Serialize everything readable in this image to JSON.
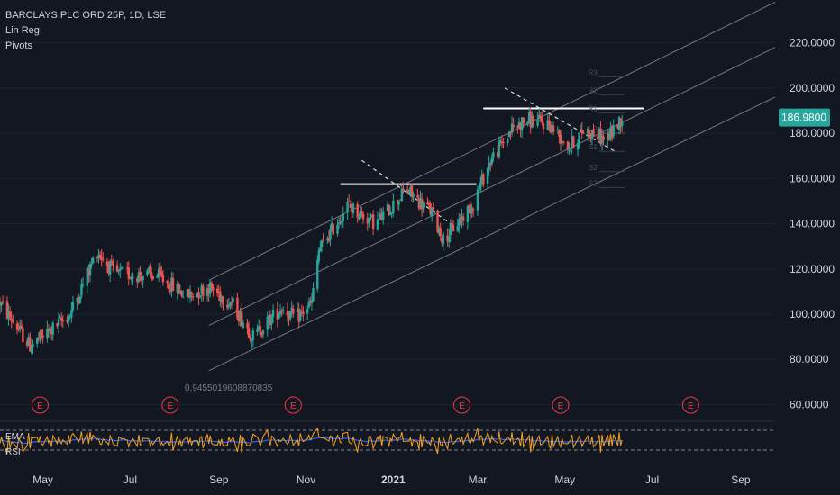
{
  "legend": {
    "symbol_line": "BARCLAYS PLC ORD 25P, 1D, LSE",
    "lin_reg": "Lin Reg",
    "pivots": "Pivots"
  },
  "oscillator": {
    "ema_label": "EMA",
    "rsi_label": "RSI"
  },
  "colors": {
    "background": "#131722",
    "up": "#26a69a",
    "down": "#ef5350",
    "price_tag": "#26a69a",
    "channel": "#9598a1",
    "earnings": "#f23645",
    "rsi": "#f7a21b",
    "ema": "#2962ff"
  },
  "chart_data": {
    "type": "candlestick",
    "title": "BARCLAYS PLC ORD 25P, 1D, LSE",
    "y_axis": {
      "ticks": [
        "220.0000",
        "200.0000",
        "180.0000",
        "160.0000",
        "140.0000",
        "120.0000",
        "100.0000",
        "80.0000",
        "60.0000"
      ],
      "tick_values": [
        220,
        200,
        180,
        160,
        140,
        120,
        100,
        80,
        60
      ],
      "range": [
        55,
        235
      ]
    },
    "x_axis": {
      "ticks": [
        "May",
        "Jul",
        "Sep",
        "Nov",
        "2021",
        "Mar",
        "May",
        "Jul",
        "Sep"
      ],
      "range": [
        "2020-04-01",
        "2021-09-25"
      ]
    },
    "last_price": "186.9800",
    "lin_reg_r": "0.9455019608870835",
    "earnings_marker": "E",
    "earnings_dates": [
      "2020-04-29",
      "2020-07-29",
      "2020-10-23",
      "2021-02-18",
      "2021-04-28",
      "2021-07-28"
    ],
    "price_path": [
      [
        "2020-04-01",
        105
      ],
      [
        "2020-04-22",
        86
      ],
      [
        "2020-05-05",
        92
      ],
      [
        "2020-05-20",
        100
      ],
      [
        "2020-06-08",
        128
      ],
      [
        "2020-06-20",
        118
      ],
      [
        "2020-07-20",
        117
      ],
      [
        "2020-08-10",
        108
      ],
      [
        "2020-08-25",
        112
      ],
      [
        "2020-09-10",
        105
      ],
      [
        "2020-09-25",
        90
      ],
      [
        "2020-10-15",
        103
      ],
      [
        "2020-10-25",
        98
      ],
      [
        "2020-11-05",
        105
      ],
      [
        "2020-11-10",
        128
      ],
      [
        "2020-11-30",
        148
      ],
      [
        "2020-12-20",
        140
      ],
      [
        "2021-01-10",
        155
      ],
      [
        "2021-01-28",
        145
      ],
      [
        "2021-02-05",
        133
      ],
      [
        "2021-02-25",
        148
      ],
      [
        "2021-03-10",
        168
      ],
      [
        "2021-03-25",
        182
      ],
      [
        "2021-04-05",
        186
      ],
      [
        "2021-04-20",
        184
      ],
      [
        "2021-05-04",
        174
      ],
      [
        "2021-05-15",
        182
      ],
      [
        "2021-05-30",
        177
      ],
      [
        "2021-06-10",
        187
      ]
    ],
    "channel_lines": [
      {
        "start": [
          "2020-08-25",
          115
        ],
        "end": [
          "2021-09-25",
          238
        ]
      },
      {
        "start": [
          "2020-08-25",
          95
        ],
        "end": [
          "2021-09-25",
          218
        ]
      },
      {
        "start": [
          "2020-08-25",
          75
        ],
        "end": [
          "2021-09-25",
          196
        ]
      }
    ],
    "resistance_lines": [
      {
        "start": [
          "2020-11-25",
          157.5
        ],
        "end": [
          "2021-02-28",
          157.5
        ]
      },
      {
        "start": [
          "2021-03-05",
          191
        ],
        "end": [
          "2021-06-25",
          191
        ]
      }
    ],
    "trend_lines": [
      {
        "start": [
          "2020-12-10",
          168
        ],
        "end": [
          "2021-02-10",
          140
        ]
      },
      {
        "start": [
          "2021-03-20",
          200
        ],
        "end": [
          "2021-06-05",
          172
        ]
      }
    ],
    "pivot_labels": [
      "R3",
      "R2",
      "R1",
      "P",
      "S1",
      "S2",
      "S3"
    ],
    "pivot_levels": [
      205,
      197,
      189,
      180,
      172,
      163,
      156
    ],
    "pivot_range": [
      "2021-05-25",
      "2021-06-12"
    ],
    "rsi_band_levels": [
      70,
      30
    ]
  }
}
